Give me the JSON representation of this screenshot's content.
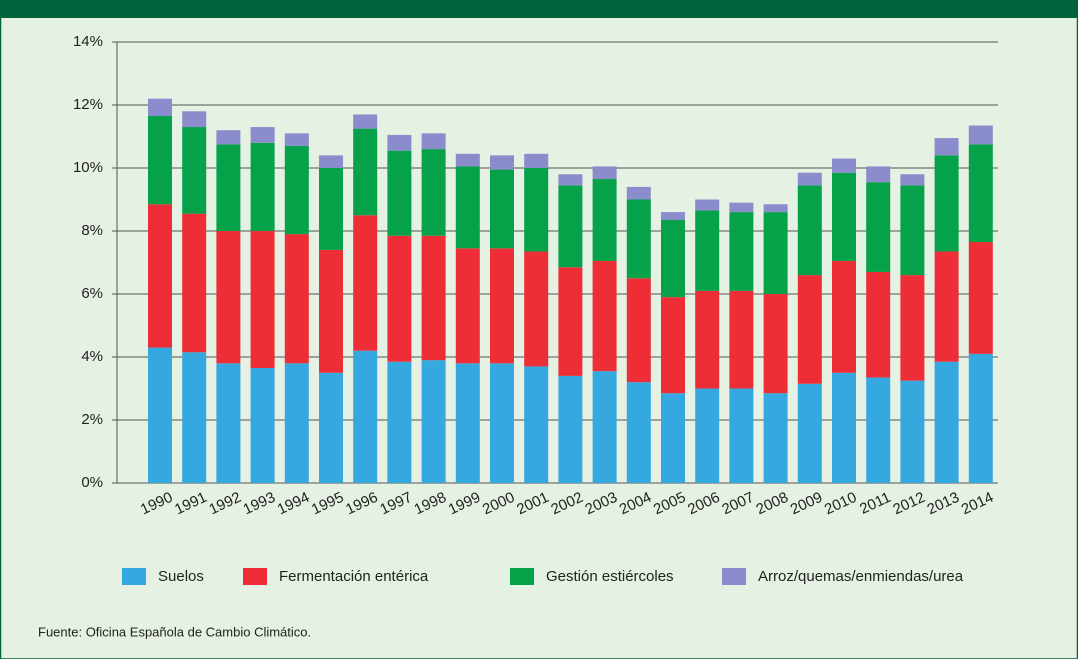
{
  "chart_data": {
    "type": "stacked_bar",
    "categories": [
      "1990",
      "1991",
      "1992",
      "1993",
      "1994",
      "1995",
      "1996",
      "1997",
      "1998",
      "1999",
      "2000",
      "2001",
      "2002",
      "2003",
      "2004",
      "2005",
      "2006",
      "2007",
      "2008",
      "2009",
      "2010",
      "2011",
      "2012",
      "2013",
      "2014"
    ],
    "series": [
      {
        "name": "Suelos",
        "color": "#35a8e0",
        "values": [
          4.3,
          4.15,
          3.8,
          3.65,
          3.8,
          3.5,
          4.2,
          3.85,
          3.9,
          3.8,
          3.8,
          3.7,
          3.4,
          3.55,
          3.2,
          2.85,
          3.0,
          3.0,
          2.85,
          3.15,
          3.5,
          3.35,
          3.25,
          3.85,
          4.1
        ]
      },
      {
        "name": "Fermentación entérica",
        "color": "#ee2e36",
        "values": [
          4.55,
          4.4,
          4.2,
          4.35,
          4.1,
          3.9,
          4.3,
          4.0,
          3.95,
          3.65,
          3.65,
          3.65,
          3.45,
          3.5,
          3.3,
          3.05,
          3.1,
          3.1,
          3.15,
          3.45,
          3.55,
          3.35,
          3.35,
          3.5,
          3.55
        ]
      },
      {
        "name": "Gestión estiércoles",
        "color": "#05a24a",
        "values": [
          2.8,
          2.75,
          2.75,
          2.8,
          2.8,
          2.6,
          2.75,
          2.7,
          2.75,
          2.6,
          2.5,
          2.65,
          2.6,
          2.6,
          2.5,
          2.45,
          2.55,
          2.5,
          2.6,
          2.85,
          2.8,
          2.85,
          2.85,
          3.05,
          3.1
        ]
      },
      {
        "name": "Arroz/quemas/enmiendas/urea",
        "color": "#8a8ccb",
        "values": [
          0.55,
          0.5,
          0.45,
          0.5,
          0.4,
          0.4,
          0.45,
          0.5,
          0.5,
          0.4,
          0.45,
          0.45,
          0.35,
          0.4,
          0.4,
          0.25,
          0.35,
          0.3,
          0.25,
          0.4,
          0.45,
          0.5,
          0.35,
          0.55,
          0.6
        ]
      }
    ],
    "ylim": [
      0,
      14
    ],
    "yticks": [
      {
        "value": 0,
        "label": "0%"
      },
      {
        "value": 2,
        "label": "2%"
      },
      {
        "value": 4,
        "label": "4%"
      },
      {
        "value": 6,
        "label": "6%"
      },
      {
        "value": 8,
        "label": "8%"
      },
      {
        "value": 10,
        "label": "10%"
      },
      {
        "value": 12,
        "label": "12%"
      },
      {
        "value": 14,
        "label": "14%"
      }
    ],
    "grid": true,
    "legend": "bottom",
    "source": "Fuente: Oficina Española de Cambio Climático."
  }
}
